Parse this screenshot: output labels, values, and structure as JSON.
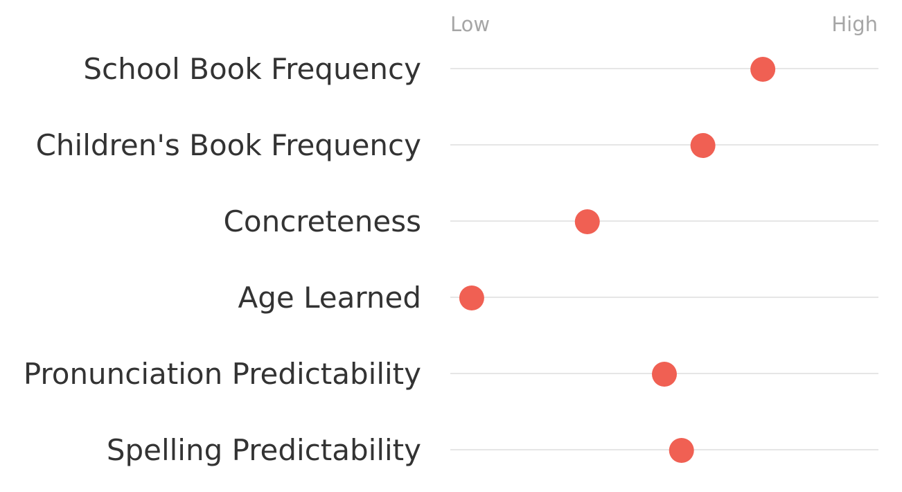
{
  "chart_data": {
    "type": "scatter",
    "title": "",
    "xlabel": "",
    "ylabel": "",
    "scale_labels": {
      "low": "Low",
      "high": "High"
    },
    "xlim": [
      0,
      100
    ],
    "grid": false,
    "legend": "none",
    "categories": [
      "School Book Frequency",
      "Children's Book Frequency",
      "Concreteness",
      "Age Learned",
      "Pronunciation Predictability",
      "Spelling Predictability"
    ],
    "values": [
      73,
      59,
      32,
      5,
      50,
      54
    ],
    "colors": {
      "dot": "#f06053",
      "track": "#d6d6d6",
      "label": "#333333",
      "scale_label": "#a6a6a6"
    }
  }
}
